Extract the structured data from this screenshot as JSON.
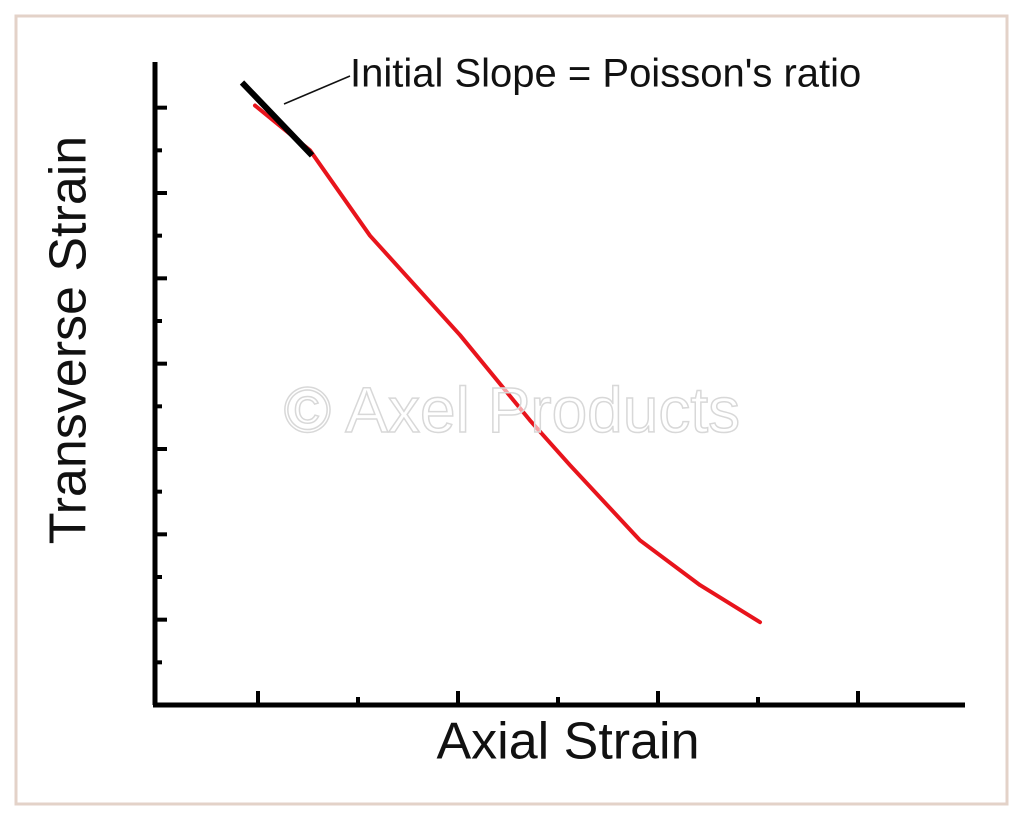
{
  "chart_data": {
    "type": "line",
    "x_label": "Axial Strain",
    "y_label": "Transverse Strain",
    "annotation": "Initial Slope = Poisson's ratio",
    "watermark": "© Axel Products",
    "xlim": [
      0,
      8
    ],
    "ylim": [
      0,
      15
    ],
    "xticks": [
      1,
      2,
      3,
      4,
      5,
      6,
      7
    ],
    "yticks": [
      1,
      2,
      3,
      4,
      5,
      6,
      7,
      8,
      9,
      10,
      11,
      12,
      13,
      14
    ],
    "series": [
      {
        "color": "#e8141c",
        "x": [
          0.97,
          1.52,
          2.12,
          3.02,
          3.72,
          4.12,
          4.82,
          5.42,
          6.02
        ],
        "values": [
          14.05,
          13.0,
          11.0,
          8.67,
          6.67,
          5.62,
          3.86,
          2.81,
          1.94
        ]
      }
    ],
    "tangent": {
      "color": "#000000",
      "x": [
        0.84,
        1.54
      ],
      "values": [
        14.59,
        12.88
      ]
    }
  }
}
